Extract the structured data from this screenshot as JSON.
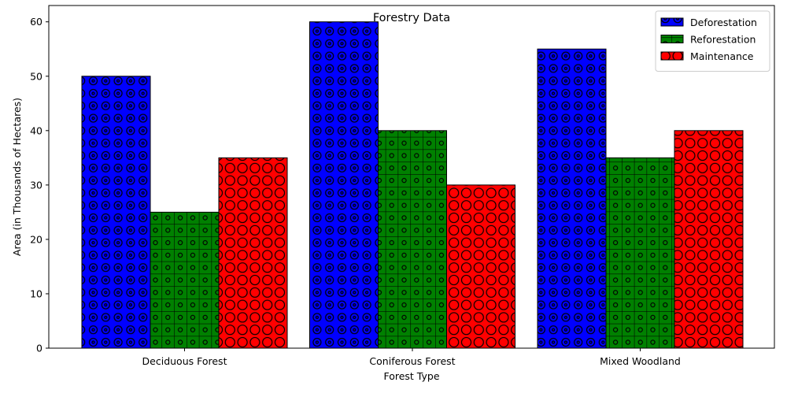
{
  "chart_data": {
    "type": "bar",
    "title": "Forestry Data",
    "xlabel": "Forest Type",
    "ylabel": "Area (in Thousands of Hectares)",
    "categories": [
      "Deciduous Forest",
      "Coniferous Forest",
      "Mixed Woodland"
    ],
    "series": [
      {
        "name": "Deforestation",
        "color": "#0000ff",
        "pattern": "rings-small",
        "values": [
          50,
          60,
          55
        ]
      },
      {
        "name": "Reforestation",
        "color": "#008000",
        "pattern": "grid-dots",
        "values": [
          25,
          40,
          35
        ]
      },
      {
        "name": "Maintenance",
        "color": "#ff0000",
        "pattern": "rings-large",
        "values": [
          35,
          30,
          40
        ]
      }
    ],
    "ylim": [
      0,
      63
    ],
    "yticks": [
      0,
      10,
      20,
      30,
      40,
      50,
      60
    ],
    "grid": false,
    "legend": "top-right"
  }
}
